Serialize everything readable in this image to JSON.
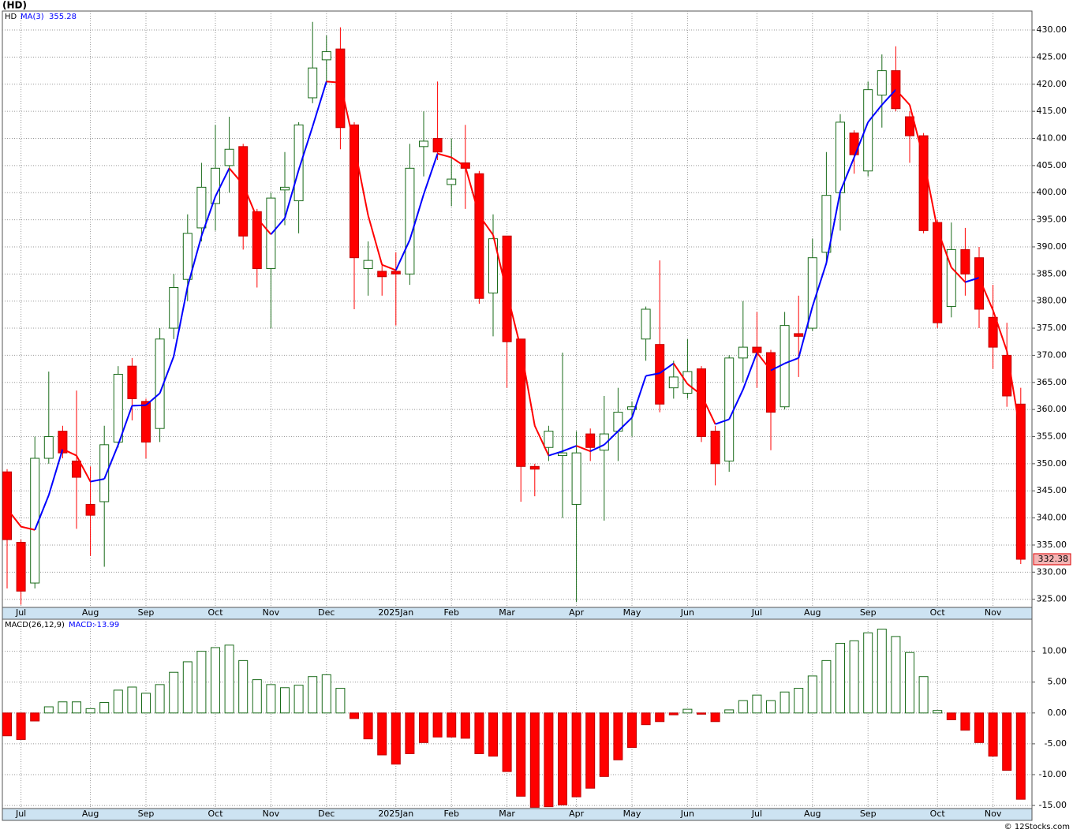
{
  "chart_data": [
    {
      "type": "candlestick",
      "title": "(HD)",
      "symbol": "HD",
      "ma_name": "MA(3)",
      "categories": [
        null,
        "Jul",
        null,
        null,
        null,
        null,
        "Aug",
        null,
        null,
        null,
        "Sep",
        null,
        null,
        null,
        null,
        "Oct",
        null,
        null,
        null,
        "Nov",
        null,
        null,
        null,
        "Dec",
        null,
        null,
        null,
        null,
        "2025Jan",
        null,
        null,
        null,
        "Feb",
        null,
        null,
        null,
        "Mar",
        null,
        null,
        null,
        null,
        "Apr",
        null,
        null,
        null,
        "May",
        null,
        null,
        null,
        "Jun",
        null,
        null,
        null,
        null,
        "Jul",
        null,
        null,
        null,
        "Aug",
        null,
        null,
        null,
        "Sep",
        null,
        null,
        null,
        null,
        "Oct",
        null,
        null,
        null,
        "Nov",
        null,
        null
      ],
      "open": [
        348.5,
        335.5,
        328,
        351,
        356,
        350.5,
        342.5,
        343,
        354,
        368,
        361.5,
        356.5,
        375,
        384,
        393.5,
        398,
        405,
        408.5,
        396.5,
        386,
        400.5,
        398.5,
        417.5,
        424.5,
        426.5,
        412.5,
        386,
        385.5,
        385.5,
        385,
        408.5,
        410,
        401.5,
        405.5,
        403.5,
        381.5,
        392,
        373,
        349.5,
        353,
        351.5,
        342.5,
        355.5,
        352.5,
        356,
        360,
        373,
        372,
        364,
        363,
        367.5,
        356,
        350.5,
        369.5,
        371.5,
        370.5,
        360.5,
        374,
        375,
        389,
        400,
        411,
        404,
        418,
        422.5,
        414,
        410.5,
        394.5,
        379,
        389.5,
        388,
        377,
        370,
        361
      ],
      "high": [
        349,
        336,
        355,
        367,
        357,
        363.5,
        349.5,
        357,
        368,
        369.5,
        362,
        375,
        385,
        396,
        405.5,
        412.5,
        414,
        409,
        397,
        400,
        407.5,
        413,
        431.5,
        429,
        430.5,
        413,
        391,
        387,
        389,
        409,
        415,
        420.5,
        410,
        412.5,
        404,
        396,
        392,
        373,
        350,
        357,
        370.5,
        356,
        356.5,
        362.5,
        364,
        361.5,
        379,
        387.5,
        369,
        373,
        368,
        357,
        370,
        380,
        378,
        371,
        378,
        381,
        391.5,
        407.5,
        414.5,
        411.5,
        420.5,
        425.5,
        427,
        415,
        411,
        395,
        394.5,
        393.5,
        390,
        383,
        376,
        364
      ],
      "low": [
        327,
        324,
        327,
        350,
        351,
        338,
        333,
        331,
        353,
        358,
        351,
        354,
        373,
        380,
        391,
        393,
        400,
        389.5,
        382.5,
        375,
        394,
        392.5,
        416.5,
        420,
        408,
        378.5,
        381,
        381,
        375.5,
        383,
        403,
        406,
        397.5,
        397,
        379.5,
        373.5,
        364,
        343,
        344,
        350.5,
        340,
        324.5,
        350.5,
        339.5,
        350.5,
        355,
        369,
        359.5,
        362,
        362,
        354,
        346,
        348.5,
        365,
        364,
        352.5,
        360,
        366,
        374.5,
        387,
        393,
        403.5,
        403,
        412,
        415,
        405.5,
        392.5,
        375,
        377,
        381,
        375,
        367.5,
        360.5,
        331.5
      ],
      "close": [
        336,
        326.5,
        351,
        355,
        352,
        347.5,
        340.5,
        353.5,
        366.5,
        362,
        354,
        373,
        382.5,
        392.5,
        401,
        404.5,
        408,
        392,
        386,
        399,
        401,
        412.5,
        423,
        426,
        412,
        388,
        387.5,
        384.5,
        385,
        404.5,
        409.5,
        407.5,
        402.5,
        404.5,
        380.5,
        391.5,
        372.5,
        349.5,
        349,
        356,
        352,
        352,
        353,
        355.5,
        359.5,
        360.5,
        378.5,
        361,
        366,
        367,
        355,
        350,
        369.5,
        371.5,
        370.5,
        359.5,
        375.5,
        373.5,
        388,
        399.5,
        413,
        407,
        419,
        422.5,
        415.5,
        410.5,
        393,
        376,
        389.5,
        385,
        378.5,
        371.5,
        362.5,
        332.38
      ],
      "ma": {
        "values": [
          341.7,
          338.4,
          337.8,
          344.2,
          352.7,
          351.5,
          346.7,
          347.2,
          353.5,
          360.7,
          360.8,
          363,
          369.8,
          382.7,
          392,
          399.3,
          404.5,
          401.5,
          395.3,
          392.3,
          395.3,
          404.2,
          412.2,
          420.5,
          420.3,
          408.7,
          395.8,
          386.7,
          385.7,
          391.3,
          399.7,
          407.2,
          406.5,
          404.8,
          395.8,
          392.2,
          381.5,
          371.2,
          357,
          351.5,
          352.3,
          353.3,
          352.3,
          353.5,
          356,
          358.5,
          366.2,
          366.7,
          368.5,
          364.7,
          362.7,
          357.3,
          358.2,
          363.7,
          370.5,
          367.2,
          368.5,
          369.5,
          379,
          387,
          400.2,
          406.5,
          413,
          416.2,
          419,
          416.2,
          406.3,
          393.2,
          386.2,
          383.5,
          384.3,
          378.3,
          370.8,
          355.28
        ],
        "up_color": "#0000ff",
        "down_color": "#ff0000"
      },
      "up_color": "#1a6b1a",
      "down_color": "#ff0000",
      "ylim": [
        323.5,
        433.5
      ],
      "yticks": [
        {
          "value": 325,
          "label": "325.00"
        },
        {
          "value": 330,
          "label": "330.00"
        },
        {
          "value": 335,
          "label": "335.00"
        },
        {
          "value": 340,
          "label": "340.00"
        },
        {
          "value": 345,
          "label": "345.00"
        },
        {
          "value": 350,
          "label": "350.00"
        },
        {
          "value": 355,
          "label": "355.00"
        },
        {
          "value": 360,
          "label": "360.00"
        },
        {
          "value": 365,
          "label": "365.00"
        },
        {
          "value": 370,
          "label": "370.00"
        },
        {
          "value": 375,
          "label": "375.00"
        },
        {
          "value": 380,
          "label": "380.00"
        },
        {
          "value": 385,
          "label": "385.00"
        },
        {
          "value": 390,
          "label": "390.00"
        },
        {
          "value": 395,
          "label": "395.00"
        },
        {
          "value": 400,
          "label": "400.00"
        },
        {
          "value": 405,
          "label": "405.00"
        },
        {
          "value": 410,
          "label": "410.00"
        },
        {
          "value": 415,
          "label": "415.00"
        },
        {
          "value": 420,
          "label": "420.00"
        },
        {
          "value": 425,
          "label": "425.00"
        },
        {
          "value": 430,
          "label": "430.00"
        }
      ],
      "grid": true
    },
    {
      "type": "bar",
      "title": "MACD(26,12,9)",
      "value_name": "MACD:",
      "categories": [
        null,
        "Jul",
        null,
        null,
        null,
        null,
        "Aug",
        null,
        null,
        null,
        "Sep",
        null,
        null,
        null,
        null,
        "Oct",
        null,
        null,
        null,
        "Nov",
        null,
        null,
        null,
        "Dec",
        null,
        null,
        null,
        null,
        "2025Jan",
        null,
        null,
        null,
        "Feb",
        null,
        null,
        null,
        "Mar",
        null,
        null,
        null,
        null,
        "Apr",
        null,
        null,
        null,
        "May",
        null,
        null,
        null,
        "Jun",
        null,
        null,
        null,
        null,
        "Jul",
        null,
        null,
        null,
        "Aug",
        null,
        null,
        null,
        "Sep",
        null,
        null,
        null,
        null,
        "Oct",
        null,
        null,
        null,
        "Nov",
        null,
        null
      ],
      "values": [
        -3.7,
        -4.3,
        -1.3,
        1,
        1.8,
        1.8,
        0.7,
        1.7,
        3.7,
        4.2,
        3.2,
        4.6,
        6.6,
        8.3,
        10,
        10.6,
        11,
        8.5,
        5.4,
        4.6,
        4.1,
        4.5,
        5.9,
        6.2,
        4,
        -0.9,
        -4.2,
        -6.8,
        -8.3,
        -6.6,
        -4.8,
        -3.9,
        -3.9,
        -4.1,
        -6.6,
        -7,
        -9.5,
        -13.5,
        -15.3,
        -15.2,
        -14.9,
        -13.6,
        -12.2,
        -10.3,
        -7.6,
        -5.6,
        -1.9,
        -1.4,
        -0.3,
        0.6,
        -0.2,
        -1.4,
        0.5,
        2,
        2.9,
        2,
        3.4,
        4,
        6,
        8.5,
        11.3,
        11.7,
        13,
        13.6,
        12.4,
        9.8,
        5.9,
        0.4,
        -1.1,
        -2.8,
        -4.8,
        -7,
        -9.3,
        -13.99
      ],
      "up_color": "#1a6b1a",
      "down_color": "#ff0000",
      "ylim": [
        -15.5,
        15.2
      ],
      "yticks": [
        {
          "value": -15,
          "label": "-15.00"
        },
        {
          "value": -10,
          "label": "-10.00"
        },
        {
          "value": -5,
          "label": "-5.00"
        },
        {
          "value": 0,
          "label": "0.00"
        },
        {
          "value": 5,
          "label": "5.00"
        },
        {
          "value": 10,
          "label": "10.00"
        }
      ],
      "grid": true
    }
  ],
  "footer": "© 12Stocks.com"
}
